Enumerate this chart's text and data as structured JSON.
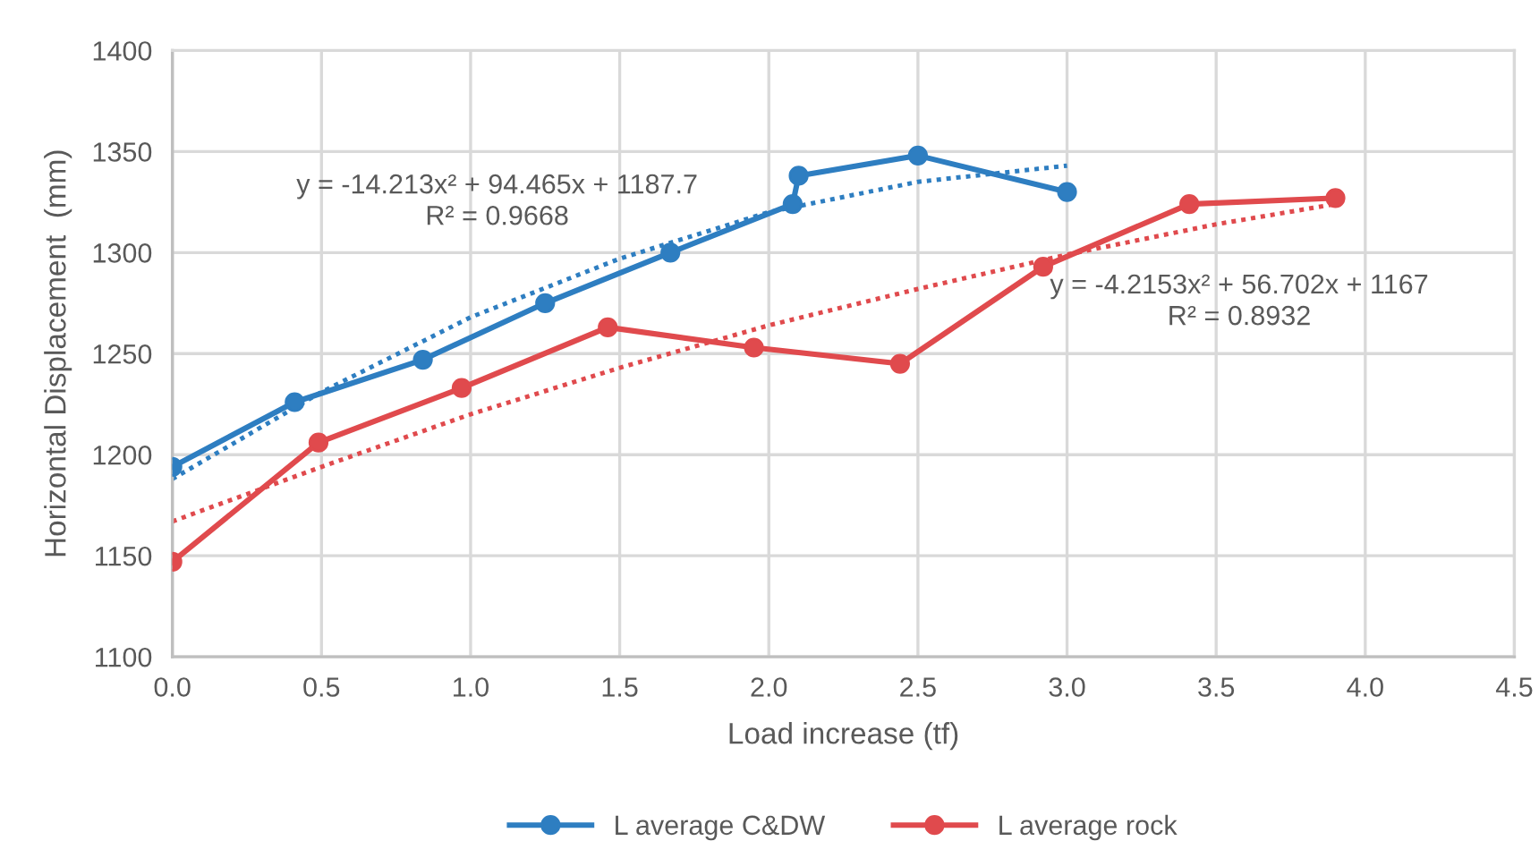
{
  "chart_data": {
    "type": "line",
    "xlabel": "Load increase (tf)",
    "ylabel": "Horizontal Displacement  (mm)",
    "xlim": [
      0,
      4.5
    ],
    "xticks": [
      {
        "value": 0,
        "label": "0.0"
      },
      0.5,
      {
        "value": 1,
        "label": "1.0"
      },
      1.5,
      {
        "value": 2,
        "label": "2.0"
      },
      2.5,
      {
        "value": 3,
        "label": "3.0"
      },
      3.5,
      {
        "value": 4,
        "label": "4.0"
      },
      4.5
    ],
    "ylim": [
      1100,
      1400
    ],
    "yticks": [
      1100,
      1150,
      1200,
      1250,
      1300,
      1350,
      1400
    ],
    "grid": true,
    "legend": "bottom",
    "series": [
      {
        "name": "L average C&DW",
        "color": "#2e7ec1",
        "marker": "circle",
        "line_style": "solid",
        "x": [
          0,
          0.41,
          0.84,
          1.25,
          1.67,
          2.08,
          2.1,
          2.5,
          3.0
        ],
        "values": [
          1194,
          1226,
          1247,
          1275,
          1300,
          1324,
          1338,
          1348,
          1330
        ]
      },
      {
        "name": "L average rock",
        "color": "#e04a4d",
        "marker": "circle",
        "line_style": "solid",
        "x": [
          0,
          0.49,
          0.97,
          1.46,
          1.95,
          2.44,
          2.92,
          3.41,
          3.9
        ],
        "values": [
          1147,
          1206,
          1233,
          1263,
          1253,
          1245,
          1293,
          1324,
          1327
        ]
      },
      {
        "type": "line",
        "color": "#2e7ec1",
        "marker": "none",
        "line_style": "dotted",
        "x": [
          0,
          0.5,
          1.0,
          1.5,
          2.0,
          2.5,
          3.0
        ],
        "values": [
          1188,
          1231,
          1268,
          1297,
          1320,
          1335,
          1343
        ]
      },
      {
        "type": "line",
        "color": "#e04a4d",
        "marker": "none",
        "line_style": "dotted",
        "x": [
          0,
          0.5,
          1.0,
          1.5,
          2.0,
          2.5,
          3.0,
          3.5,
          3.9
        ],
        "values": [
          1167,
          1194,
          1220,
          1243,
          1264,
          1282,
          1299,
          1314,
          1324
        ]
      }
    ],
    "annotations": [
      "y = -14.213x² + 94.465x + 1187.7\nR² = 0.9668",
      "y = -4.2153x² + 56.702x + 1167\nR² = 0.8932"
    ]
  }
}
